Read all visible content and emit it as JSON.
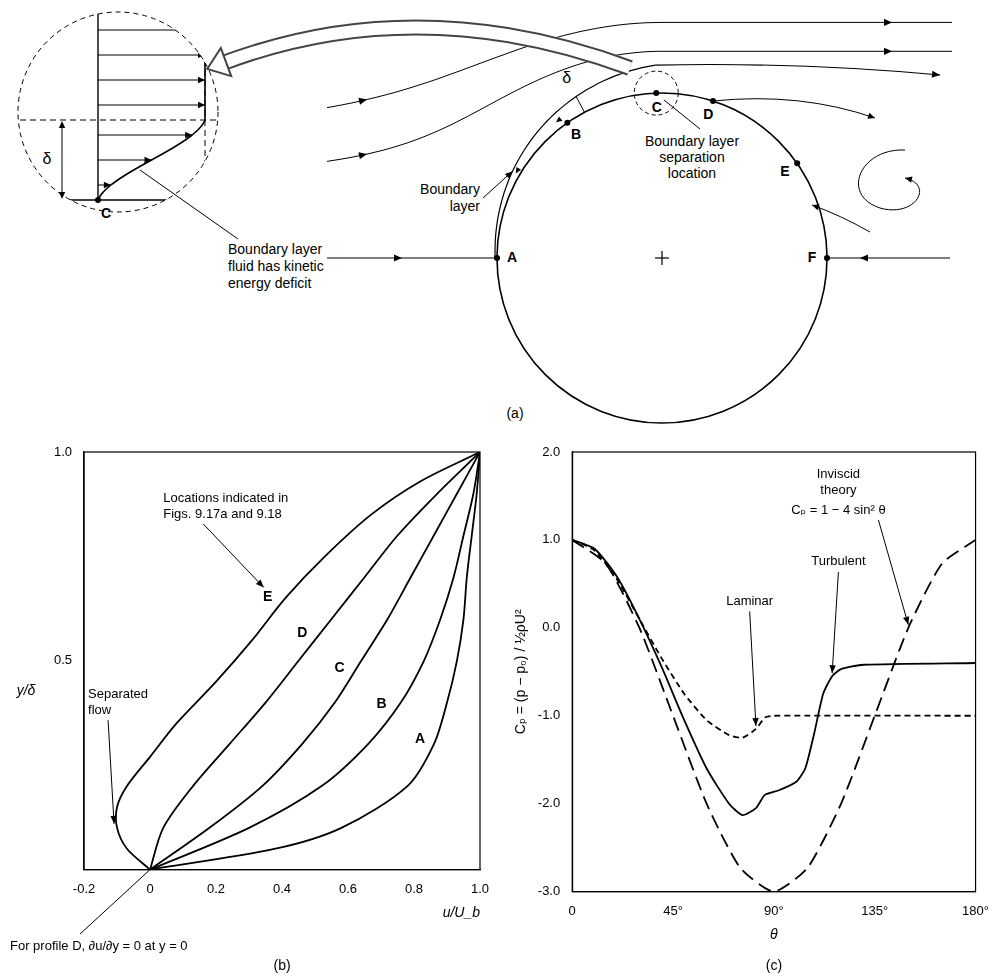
{
  "diagram": {
    "caption": "(a)",
    "points": [
      "A",
      "B",
      "C",
      "D",
      "E",
      "F"
    ],
    "boundary_layer": "Boundary layer",
    "delta": "δ",
    "separation": "Boundary layer separation location",
    "inset": {
      "point": "C",
      "delta": "δ",
      "note": "Boundary layer fluid has kinetic energy deficit"
    }
  },
  "chart_data": [
    {
      "type": "line",
      "caption": "(b)",
      "x_label": "u/U_b",
      "y_label": "y/δ",
      "xlim": [
        -0.2,
        1.0
      ],
      "xticks": [
        -0.2,
        0,
        0.2,
        0.4,
        0.6,
        0.8,
        {
          "value": 1,
          "label": "1.0"
        }
      ],
      "ylim": [
        0,
        1.0
      ],
      "yticks": [
        0.5,
        {
          "value": 1,
          "label": "1.0"
        }
      ],
      "grid": false,
      "series": [
        {
          "name": "A",
          "color": "#000000",
          "line_style": "solid",
          "x": [
            0,
            0.38,
            0.58,
            0.78,
            0.86,
            0.9,
            0.93,
            0.95,
            0.96,
            0.975,
            0.99,
            1.0
          ],
          "values": [
            0,
            0.05,
            0.1,
            0.2,
            0.3,
            0.4,
            0.5,
            0.6,
            0.7,
            0.8,
            0.9,
            1.0
          ]
        },
        {
          "name": "B",
          "color": "#000000",
          "line_style": "solid",
          "x": [
            0,
            0.3,
            0.52,
            0.66,
            0.76,
            0.83,
            0.88,
            0.92,
            0.95,
            0.98,
            1.0
          ],
          "values": [
            0,
            0.1,
            0.2,
            0.3,
            0.4,
            0.5,
            0.6,
            0.7,
            0.8,
            0.9,
            1.0
          ]
        },
        {
          "name": "C",
          "color": "#000000",
          "line_style": "solid",
          "x": [
            0,
            0.18,
            0.34,
            0.46,
            0.56,
            0.64,
            0.72,
            0.79,
            0.86,
            0.93,
            1.0
          ],
          "values": [
            0,
            0.1,
            0.2,
            0.3,
            0.4,
            0.5,
            0.6,
            0.7,
            0.8,
            0.9,
            1.0
          ]
        },
        {
          "name": "D",
          "color": "#000000",
          "line_style": "solid",
          "x": [
            0,
            0.04,
            0.13,
            0.24,
            0.35,
            0.45,
            0.55,
            0.65,
            0.75,
            0.87,
            1.0
          ],
          "values": [
            0,
            0.1,
            0.2,
            0.3,
            0.4,
            0.5,
            0.6,
            0.7,
            0.8,
            0.9,
            1.0
          ]
        },
        {
          "name": "E",
          "color": "#000000",
          "line_style": "solid",
          "x": [
            0,
            -0.07,
            -0.1,
            -0.1,
            -0.07,
            0,
            0.08,
            0.2,
            0.31,
            0.41,
            0.53,
            0.67,
            0.82,
            1.0
          ],
          "values": [
            0,
            0.05,
            0.1,
            0.15,
            0.2,
            0.27,
            0.35,
            0.45,
            0.55,
            0.65,
            0.75,
            0.85,
            0.93,
            1.0
          ]
        }
      ],
      "annotations": [
        {
          "text": "Locations indicated in Figs. 9.17a and 9.18",
          "series": "E"
        },
        {
          "text": "Separated flow",
          "series": "E"
        },
        {
          "text": "For profile D, ∂u/∂y = 0 at y = 0",
          "series": "D"
        }
      ]
    },
    {
      "type": "line",
      "caption": "(c)",
      "x_label": "θ",
      "y_label": "Cₚ = (p − p₀) / ½ρU²",
      "xlim": [
        0,
        180
      ],
      "xticks": [
        0,
        {
          "value": 45,
          "label": "45°"
        },
        {
          "value": 90,
          "label": "90°"
        },
        {
          "value": 135,
          "label": "135°"
        },
        {
          "value": 180,
          "label": "180°"
        }
      ],
      "ylim": [
        -3.0,
        2.0
      ],
      "yticks": [
        {
          "value": -3,
          "label": "-3.0"
        },
        {
          "value": -2,
          "label": "-2.0"
        },
        {
          "value": -1,
          "label": "-1.0"
        },
        {
          "value": 0,
          "label": "0.0"
        },
        {
          "value": 1,
          "label": "1.0"
        },
        {
          "value": 2,
          "label": "2.0"
        }
      ],
      "grid": false,
      "series": [
        {
          "name": "Inviscid theory",
          "color": "#000000",
          "line_style": "long_dashed",
          "x": [
            0,
            15,
            30,
            45,
            60,
            75,
            90,
            105,
            120,
            135,
            150,
            165,
            180
          ],
          "values": [
            1,
            0.73,
            0,
            -1,
            -2,
            -2.73,
            -3,
            -2.73,
            -2,
            -1,
            0,
            0.73,
            1
          ]
        },
        {
          "name": "Laminar",
          "color": "#000000",
          "line_style": "dashed",
          "x": [
            0,
            10,
            20,
            30,
            40,
            50,
            60,
            70,
            76,
            82,
            86,
            90,
            180
          ],
          "values": [
            1,
            0.88,
            0.55,
            0.1,
            -0.35,
            -0.75,
            -1.05,
            -1.22,
            -1.25,
            -1.15,
            -1.02,
            -1.0,
            -1.0
          ]
        },
        {
          "name": "Turbulent",
          "color": "#000000",
          "line_style": "solid",
          "x": [
            0,
            10,
            20,
            30,
            40,
            50,
            60,
            70,
            76,
            82,
            86,
            92,
            100,
            104,
            108,
            112,
            116,
            120,
            130,
            180
          ],
          "values": [
            1,
            0.9,
            0.58,
            0.1,
            -0.45,
            -1.05,
            -1.6,
            -2.0,
            -2.13,
            -2.05,
            -1.9,
            -1.85,
            -1.75,
            -1.6,
            -1.2,
            -0.75,
            -0.55,
            -0.47,
            -0.42,
            -0.4
          ]
        }
      ],
      "annotations": [
        {
          "text": "Cₚ = 1 − 4 sin² θ",
          "series": "Inviscid theory"
        }
      ]
    }
  ]
}
